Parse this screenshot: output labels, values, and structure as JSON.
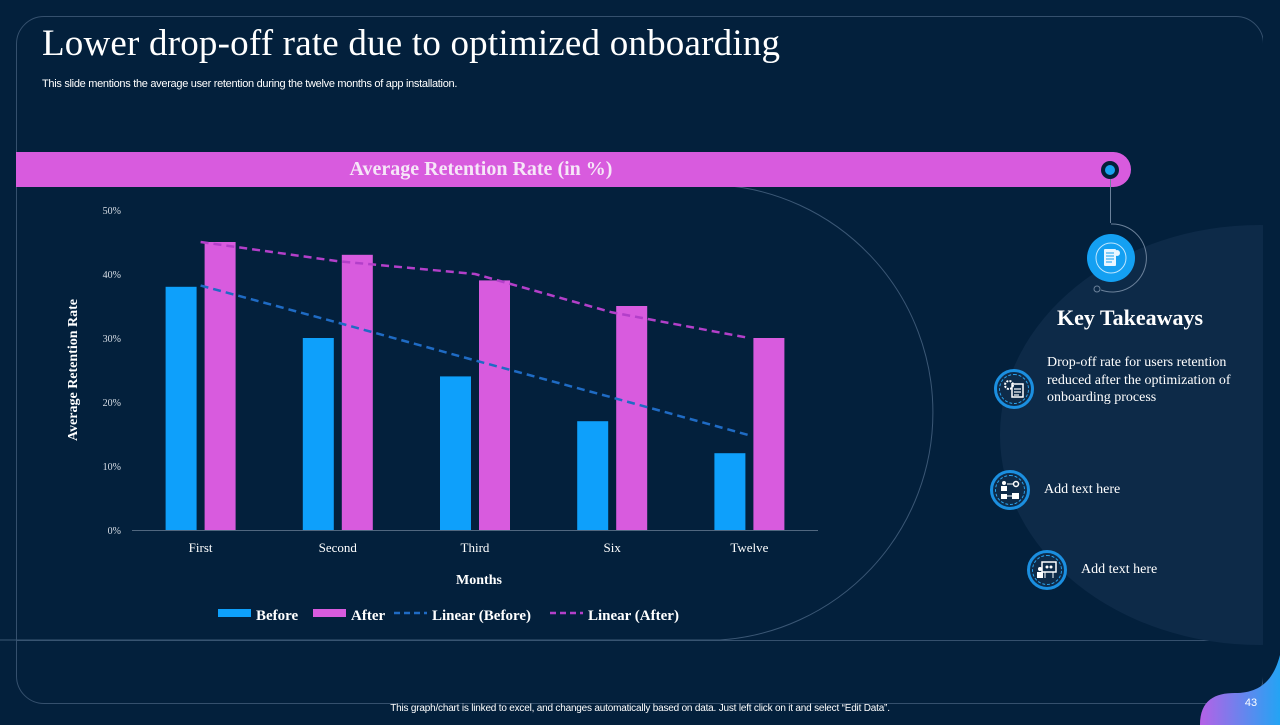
{
  "slide": {
    "title": "Lower drop-off rate due to optimized onboarding",
    "subtitle": "This slide mentions the average user retention during the twelve months of app installation.",
    "banner_title": "Average Retention Rate (in %)",
    "footer_note": "This graph/chart is linked to excel, and changes automatically based on data. Just left click on it and select “Edit Data”.",
    "page_number": "43"
  },
  "colors": {
    "background": "#03203c",
    "accent_pink": "#d85bde",
    "accent_blue": "#0ea0fb",
    "trend_before": "#1f6bc4",
    "trend_after": "#b33fc9"
  },
  "key_takeaways": {
    "title": "Key Takeaways",
    "header_icon": "document-icon",
    "items": [
      {
        "icon": "gear-document-icon",
        "text": "Drop-off rate for users retention reduced after the optimization of onboarding process"
      },
      {
        "icon": "workflow-icon",
        "text": "Add text here"
      },
      {
        "icon": "presentation-icon",
        "text": "Add text here"
      }
    ]
  },
  "chart_data": {
    "type": "bar",
    "title": "Average Retention Rate (in %)",
    "xlabel": "Months",
    "ylabel": "Average Retention Rate",
    "categories": [
      "First",
      "Second",
      "Third",
      "Six",
      "Twelve"
    ],
    "ylim": [
      0,
      50
    ],
    "yticks": [
      0,
      10,
      20,
      30,
      40,
      50
    ],
    "ytick_labels": [
      "0%",
      "10%",
      "20%",
      "30%",
      "40%",
      "50%"
    ],
    "grid": false,
    "legend_position": "bottom",
    "series": [
      {
        "name": "Before",
        "kind": "bar",
        "color": "#0ea0fb",
        "values": [
          38,
          30,
          24,
          17,
          12
        ]
      },
      {
        "name": "After",
        "kind": "bar",
        "color": "#d85bde",
        "values": [
          45,
          43,
          39,
          35,
          30
        ]
      }
    ],
    "trendlines": [
      {
        "name": "Linear (Before)",
        "color": "#1f6bc4",
        "dashed": true,
        "values": [
          38.2,
          32.4,
          26.5,
          20.7,
          14.8
        ]
      },
      {
        "name": "Linear (After)",
        "color": "#b33fc9",
        "dashed": true,
        "values": [
          45,
          42,
          40,
          34,
          30
        ]
      }
    ],
    "legend": [
      "Before",
      "After",
      "Linear (Before)",
      "Linear (After)"
    ]
  }
}
